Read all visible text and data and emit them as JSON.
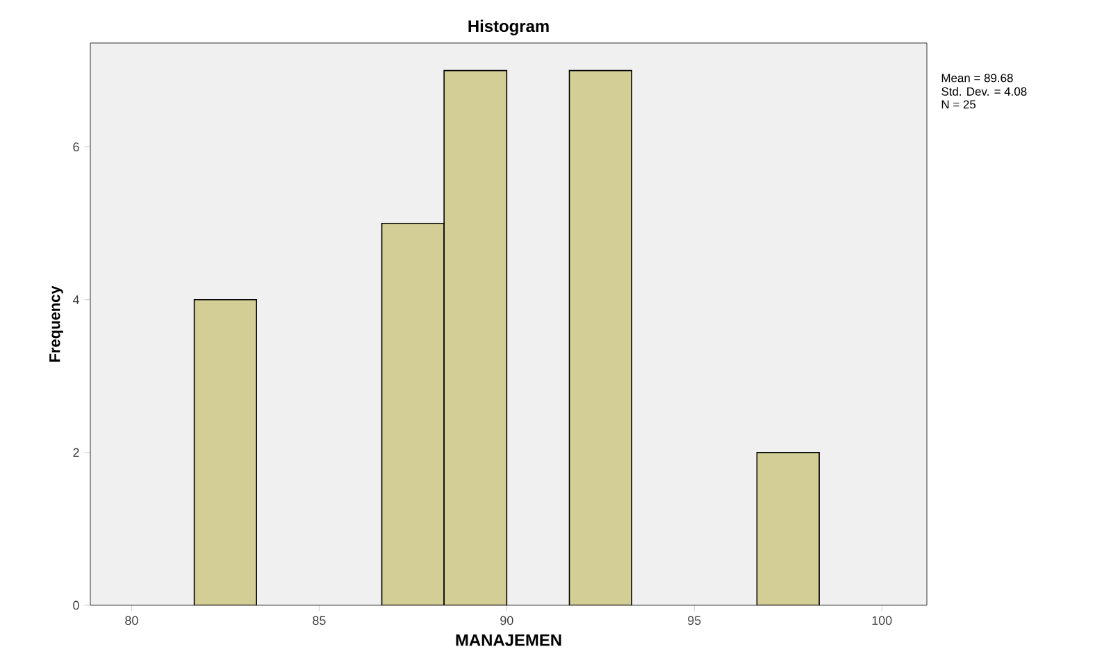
{
  "chart_data": {
    "type": "histogram",
    "title": "Histogram",
    "xlabel": "MANAJEMEN",
    "ylabel": "Frequency",
    "bins": [
      81.67,
      83.33,
      86.67,
      88.33,
      90,
      91.67,
      93.33,
      96.67,
      98.33
    ],
    "values": [
      4,
      0,
      5,
      7,
      0,
      7,
      0,
      2
    ],
    "color": "#d3cd96",
    "xlim": [
      78.9,
      101.2
    ],
    "ylim": [
      0,
      7.36
    ],
    "xticks": [
      80,
      85,
      90,
      95,
      100
    ],
    "yticks": [
      0,
      2,
      4,
      6
    ],
    "grid": false,
    "annotations": [
      "Mean = 89.68",
      "Std. Dev. = 4.08",
      "N = 25"
    ]
  }
}
